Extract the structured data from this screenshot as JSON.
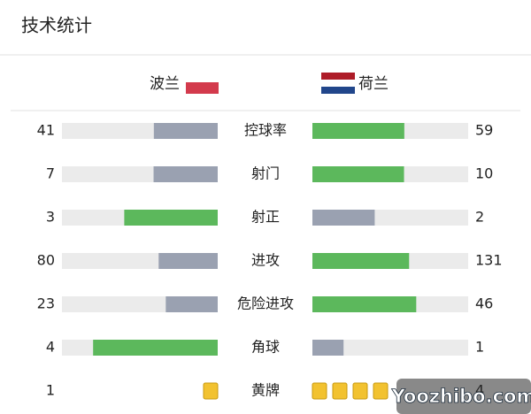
{
  "header": {
    "title": "技术统计"
  },
  "teams": {
    "home": "波兰",
    "away": "荷兰"
  },
  "colors": {
    "leading": "#5cb85c",
    "trailing": "#9aa1b1",
    "track": "#ebebeb",
    "card": "#f2c230"
  },
  "rows": [
    {
      "label": "控球率",
      "home": 41,
      "away": 59,
      "kind": "bar"
    },
    {
      "label": "射门",
      "home": 7,
      "away": 10,
      "kind": "bar"
    },
    {
      "label": "射正",
      "home": 3,
      "away": 2,
      "kind": "bar"
    },
    {
      "label": "进攻",
      "home": 80,
      "away": 131,
      "kind": "bar"
    },
    {
      "label": "危险进攻",
      "home": 23,
      "away": 46,
      "kind": "bar"
    },
    {
      "label": "角球",
      "home": 4,
      "away": 1,
      "kind": "bar"
    },
    {
      "label": "黄牌",
      "home": 1,
      "away": 4,
      "kind": "cards"
    }
  ],
  "watermark": "Yoozhibo.com"
}
